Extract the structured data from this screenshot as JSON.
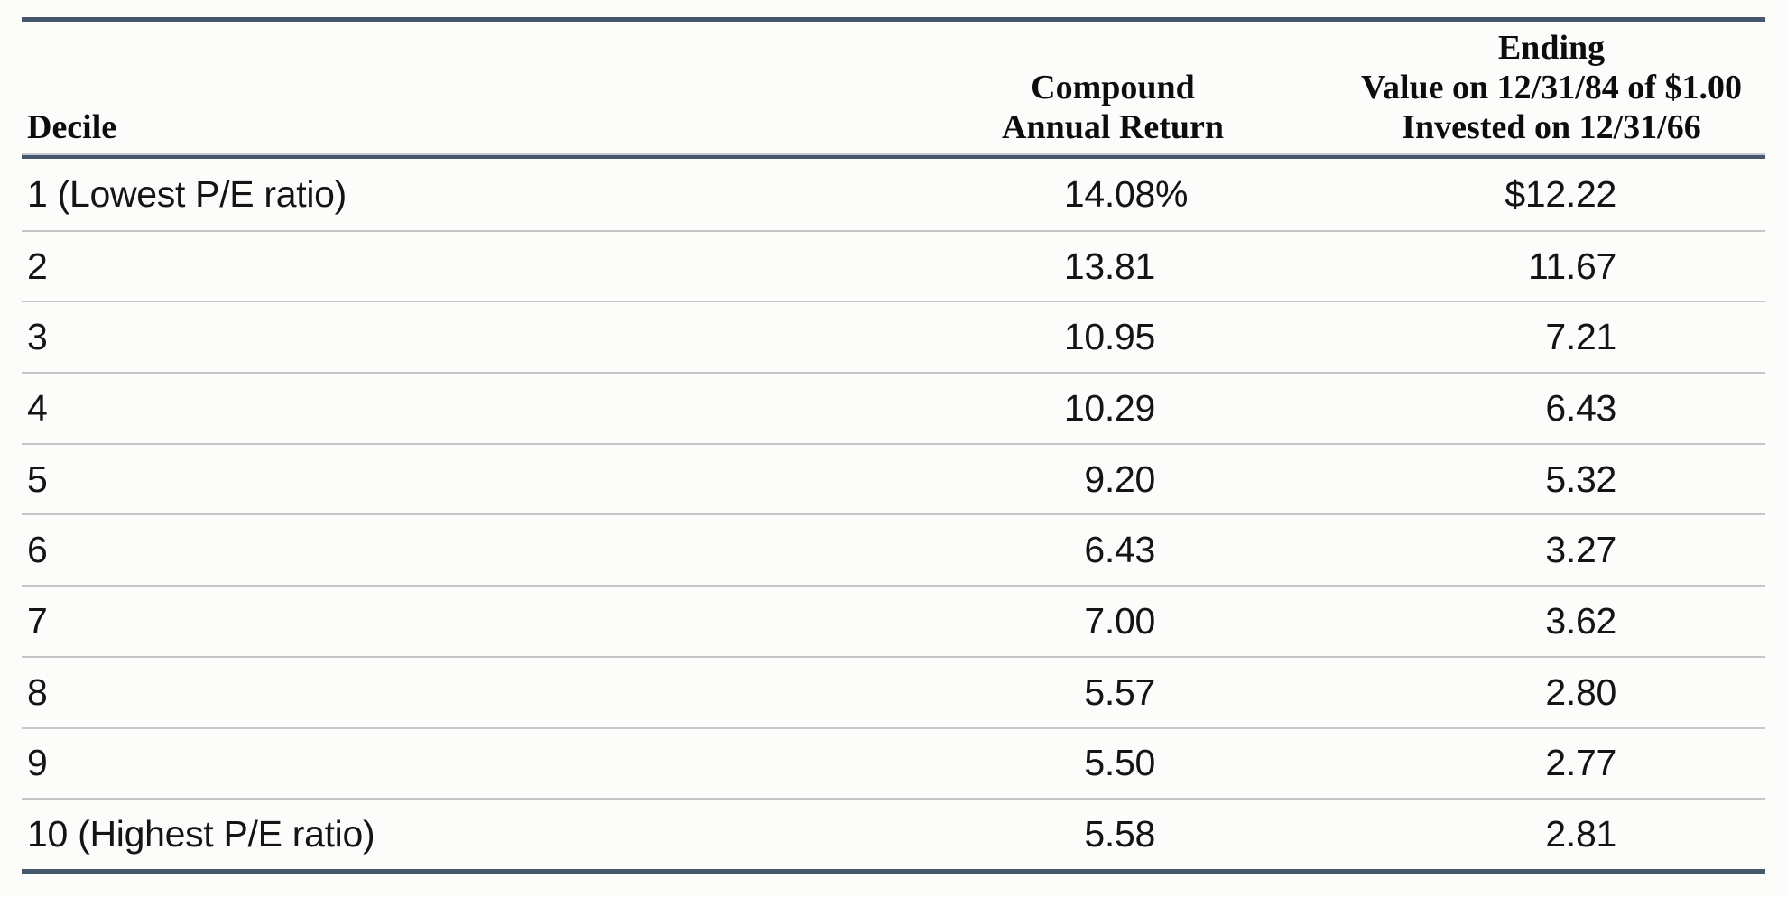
{
  "table": {
    "header": {
      "decile_label": "Decile",
      "return_line1": "Compound",
      "return_line2": "Annual Return",
      "ending_line1": "Ending",
      "ending_line2": "Value on 12/31/84 of $1.00",
      "ending_line3": "Invested on 12/31/66"
    },
    "rows": [
      {
        "decile": "1 (Lowest P/E ratio)",
        "return_value": "14.08",
        "return_suffix": "%",
        "ending_value": "$12.22"
      },
      {
        "decile": "2",
        "return_value": "13.81",
        "return_suffix": "",
        "ending_value": "11.67"
      },
      {
        "decile": "3",
        "return_value": "10.95",
        "return_suffix": "",
        "ending_value": "7.21"
      },
      {
        "decile": "4",
        "return_value": "10.29",
        "return_suffix": "",
        "ending_value": "6.43"
      },
      {
        "decile": "5",
        "return_value": "9.20",
        "return_suffix": "",
        "ending_value": "5.32"
      },
      {
        "decile": "6",
        "return_value": "6.43",
        "return_suffix": "",
        "ending_value": "3.27"
      },
      {
        "decile": "7",
        "return_value": "7.00",
        "return_suffix": "",
        "ending_value": "3.62"
      },
      {
        "decile": "8",
        "return_value": "5.57",
        "return_suffix": "",
        "ending_value": "2.80"
      },
      {
        "decile": "9",
        "return_value": "5.50",
        "return_suffix": "",
        "ending_value": "2.77"
      },
      {
        "decile": "10 (Highest P/E ratio)",
        "return_value": "5.58",
        "return_suffix": "",
        "ending_value": "2.81"
      }
    ],
    "colors": {
      "accent_border": "#46586b",
      "row_separator": "#c6c6c6",
      "text": "#141414"
    }
  }
}
